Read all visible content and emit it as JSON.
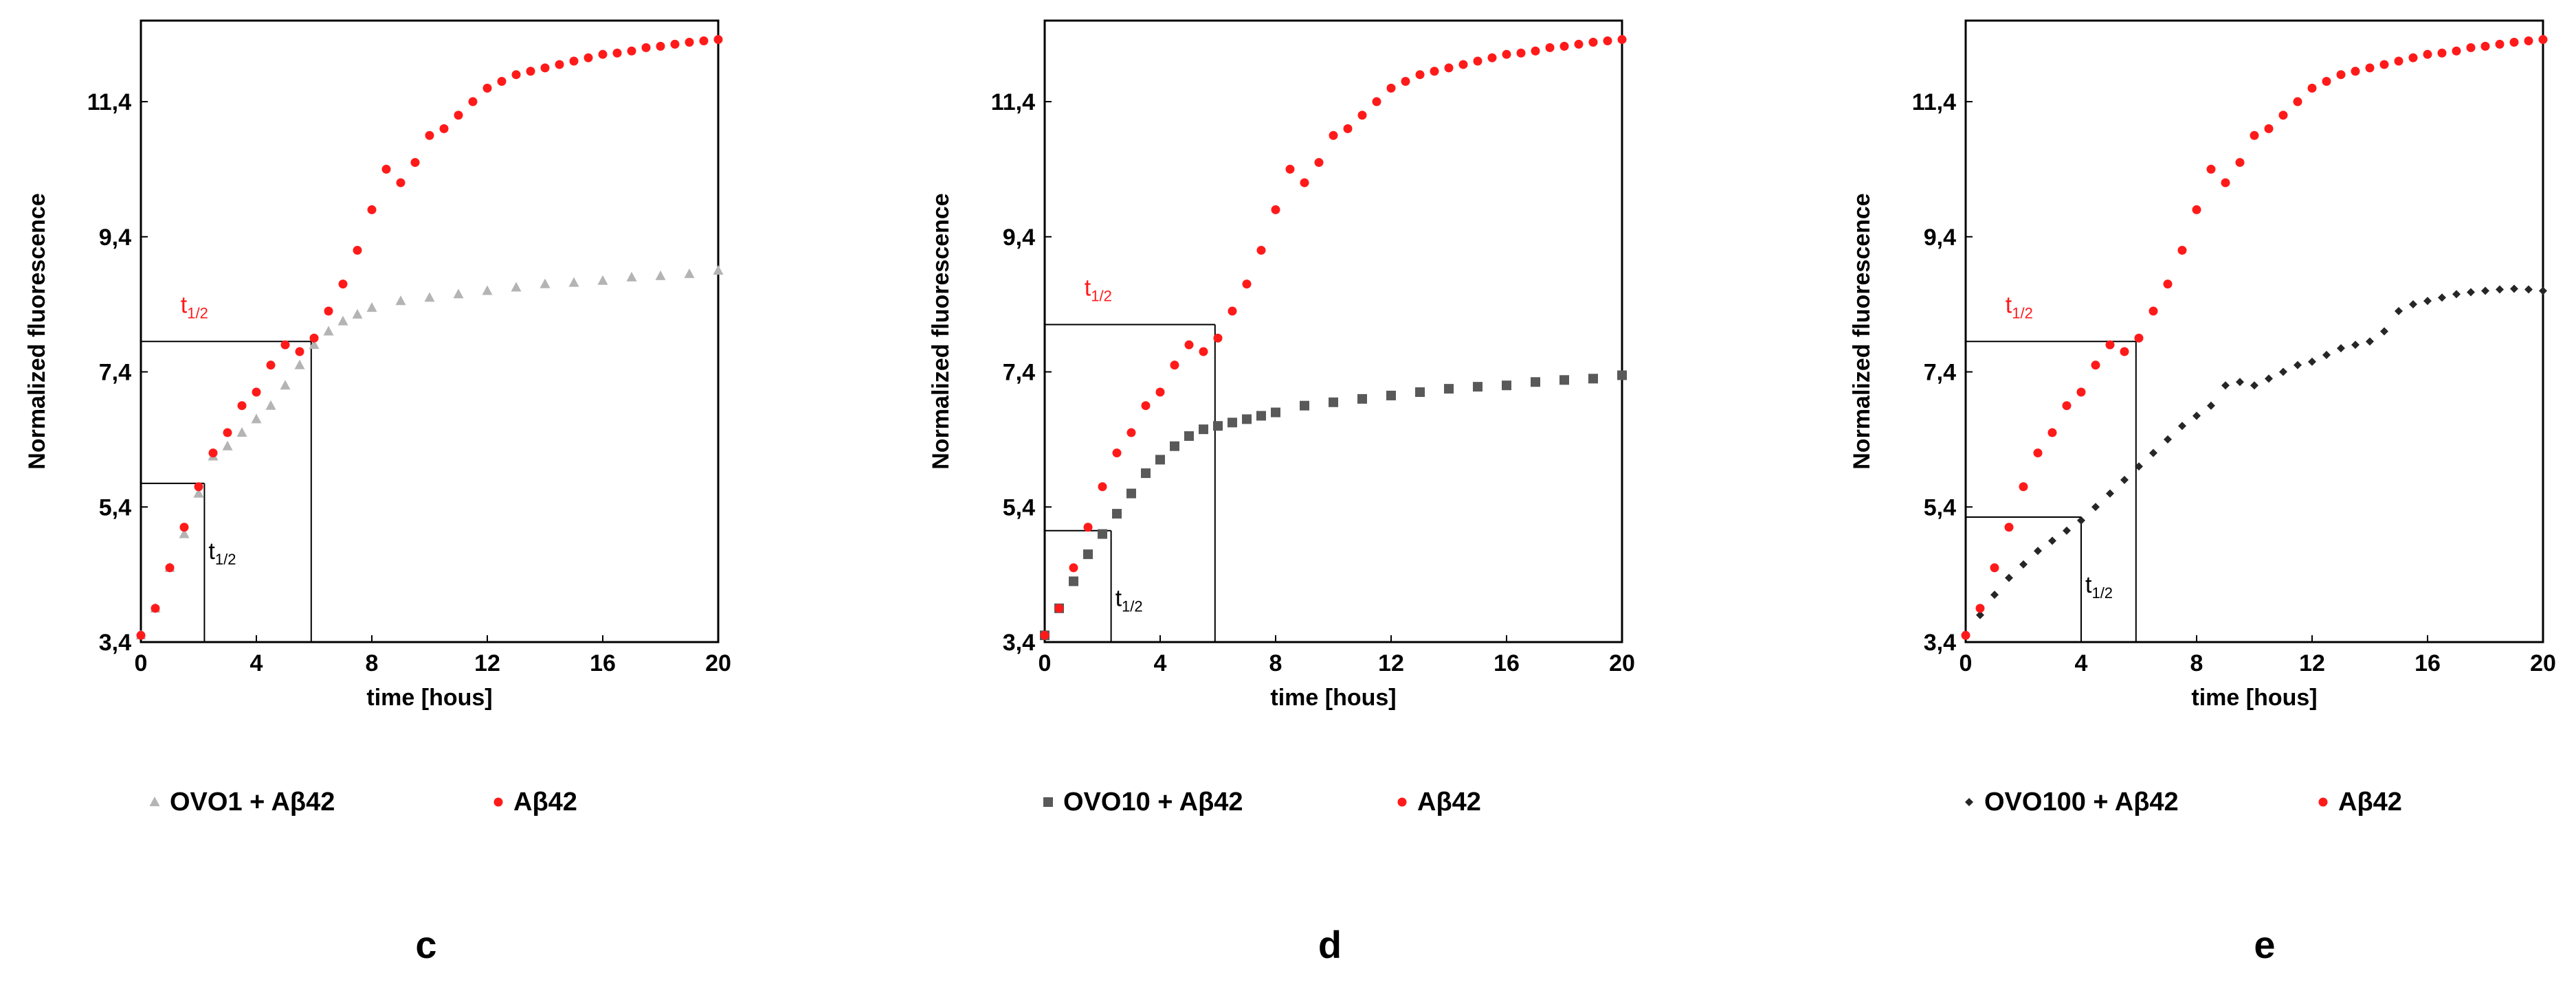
{
  "colors": {
    "abeta": "#ff1a1a",
    "ovo1": "#b4b4b4",
    "ovo10": "#595959",
    "ovo100": "#262626",
    "axis": "#000000"
  },
  "chart_data": [
    {
      "type": "scatter",
      "panel_label": "c",
      "xlabel": "time [hous]",
      "ylabel": "Normalized fluorescence",
      "xlim": [
        0,
        20
      ],
      "ylim": [
        3.4,
        12.6
      ],
      "xticks": [
        0,
        4,
        8,
        12,
        16,
        20
      ],
      "yticks": [
        3.4,
        5.4,
        7.4,
        9.4,
        11.4
      ],
      "ytick_labels": [
        "3,4",
        "5,4",
        "7,4",
        "9,4",
        "11,4"
      ],
      "grid": false,
      "legend_position": "bottom",
      "series": [
        {
          "name": "OVO1 + Aβ42",
          "marker": "triangle",
          "color": "#b4b4b4",
          "x": [
            0,
            0.5,
            1,
            1.5,
            2,
            2.5,
            3,
            3.5,
            4,
            4.5,
            5,
            5.5,
            6,
            6.5,
            7,
            7.5,
            8,
            9,
            10,
            11,
            12,
            13,
            14,
            15,
            16,
            17,
            18,
            19,
            20
          ],
          "y": [
            3.5,
            3.9,
            4.5,
            5.0,
            5.6,
            6.15,
            6.3,
            6.5,
            6.7,
            6.9,
            7.2,
            7.5,
            7.8,
            8.0,
            8.15,
            8.25,
            8.35,
            8.45,
            8.5,
            8.55,
            8.6,
            8.65,
            8.7,
            8.72,
            8.75,
            8.8,
            8.82,
            8.85,
            8.9
          ]
        },
        {
          "name": "Aβ42",
          "marker": "circle",
          "color": "#ff1a1a",
          "x": [
            0,
            0.5,
            1,
            1.5,
            2,
            2.5,
            3,
            3.5,
            4,
            4.5,
            5,
            5.5,
            6,
            6.5,
            7,
            7.5,
            8,
            8.5,
            9,
            9.5,
            10,
            10.5,
            11,
            11.5,
            12,
            12.5,
            13,
            13.5,
            14,
            14.5,
            15,
            15.5,
            16,
            16.5,
            17,
            17.5,
            18,
            18.5,
            19,
            19.5,
            20
          ],
          "y": [
            3.5,
            3.9,
            4.5,
            5.1,
            5.7,
            6.2,
            6.5,
            6.9,
            7.1,
            7.5,
            7.8,
            7.7,
            7.9,
            8.3,
            8.7,
            9.2,
            9.8,
            10.4,
            10.2,
            10.5,
            10.9,
            11.0,
            11.2,
            11.4,
            11.6,
            11.7,
            11.8,
            11.85,
            11.9,
            11.95,
            12.0,
            12.05,
            12.1,
            12.12,
            12.15,
            12.2,
            12.22,
            12.25,
            12.28,
            12.3,
            12.32
          ]
        }
      ],
      "annotations": [
        {
          "series": "Aβ42",
          "x": 5.9,
          "y": 7.85,
          "label": "t",
          "sub": "1/2"
        },
        {
          "series": "OVO1 + Aβ42",
          "x": 2.2,
          "y": 5.75,
          "label": "t",
          "sub": "1/2"
        }
      ]
    },
    {
      "type": "scatter",
      "panel_label": "d",
      "xlabel": "time [hous]",
      "ylabel": "Normalized fluorescence",
      "xlim": [
        0,
        20
      ],
      "ylim": [
        3.4,
        12.6
      ],
      "xticks": [
        0,
        4,
        8,
        12,
        16,
        20
      ],
      "yticks": [
        3.4,
        5.4,
        7.4,
        9.4,
        11.4
      ],
      "ytick_labels": [
        "3,4",
        "5,4",
        "7,4",
        "9,4",
        "11,4"
      ],
      "grid": false,
      "legend_position": "bottom",
      "series": [
        {
          "name": "OVO10 + Aβ42",
          "marker": "square",
          "color": "#595959",
          "x": [
            0,
            0.5,
            1,
            1.5,
            2,
            2.5,
            3,
            3.5,
            4,
            4.5,
            5,
            5.5,
            6,
            6.5,
            7,
            7.5,
            8,
            9,
            10,
            11,
            12,
            13,
            14,
            15,
            16,
            17,
            18,
            19,
            20
          ],
          "y": [
            3.5,
            3.9,
            4.3,
            4.7,
            5.0,
            5.3,
            5.6,
            5.9,
            6.1,
            6.3,
            6.45,
            6.55,
            6.6,
            6.65,
            6.7,
            6.75,
            6.8,
            6.9,
            6.95,
            7.0,
            7.05,
            7.1,
            7.15,
            7.18,
            7.2,
            7.25,
            7.28,
            7.3,
            7.35
          ]
        },
        {
          "name": "Aβ42",
          "marker": "circle",
          "color": "#ff1a1a",
          "x": [
            0,
            0.5,
            1,
            1.5,
            2,
            2.5,
            3,
            3.5,
            4,
            4.5,
            5,
            5.5,
            6,
            6.5,
            7,
            7.5,
            8,
            8.5,
            9,
            9.5,
            10,
            10.5,
            11,
            11.5,
            12,
            12.5,
            13,
            13.5,
            14,
            14.5,
            15,
            15.5,
            16,
            16.5,
            17,
            17.5,
            18,
            18.5,
            19,
            19.5,
            20
          ],
          "y": [
            3.5,
            3.9,
            4.5,
            5.1,
            5.7,
            6.2,
            6.5,
            6.9,
            7.1,
            7.5,
            7.8,
            7.7,
            7.9,
            8.3,
            8.7,
            9.2,
            9.8,
            10.4,
            10.2,
            10.5,
            10.9,
            11.0,
            11.2,
            11.4,
            11.6,
            11.7,
            11.8,
            11.85,
            11.9,
            11.95,
            12.0,
            12.05,
            12.1,
            12.12,
            12.15,
            12.2,
            12.22,
            12.25,
            12.28,
            12.3,
            12.32
          ]
        }
      ],
      "annotations": [
        {
          "series": "Aβ42",
          "x": 5.9,
          "y": 8.1,
          "label": "t",
          "sub": "1/2"
        },
        {
          "series": "OVO10 + Aβ42",
          "x": 2.3,
          "y": 5.05,
          "label": "t",
          "sub": "1/2"
        }
      ]
    },
    {
      "type": "scatter",
      "panel_label": "e",
      "xlabel": "time [hous]",
      "ylabel": "Normalized fluorescence",
      "xlim": [
        0,
        20
      ],
      "ylim": [
        3.4,
        12.6
      ],
      "xticks": [
        0,
        4,
        8,
        12,
        16,
        20
      ],
      "yticks": [
        3.4,
        5.4,
        7.4,
        9.4,
        11.4
      ],
      "ytick_labels": [
        "3,4",
        "5,4",
        "7,4",
        "9,4",
        "11,4"
      ],
      "grid": false,
      "legend_position": "bottom",
      "series": [
        {
          "name": "OVO100 + Aβ42",
          "marker": "diamond",
          "color": "#262626",
          "x": [
            0,
            0.5,
            1,
            1.5,
            2,
            2.5,
            3,
            3.5,
            4,
            4.5,
            5,
            5.5,
            6,
            6.5,
            7,
            7.5,
            8,
            8.5,
            9,
            9.5,
            10,
            10.5,
            11,
            11.5,
            12,
            12.5,
            13,
            13.5,
            14,
            14.5,
            15,
            15.5,
            16,
            16.5,
            17,
            17.5,
            18,
            18.5,
            19,
            19.5,
            20
          ],
          "y": [
            3.5,
            3.8,
            4.1,
            4.35,
            4.55,
            4.75,
            4.9,
            5.05,
            5.2,
            5.4,
            5.6,
            5.8,
            6.0,
            6.2,
            6.4,
            6.6,
            6.75,
            6.9,
            7.2,
            7.25,
            7.2,
            7.3,
            7.4,
            7.5,
            7.55,
            7.65,
            7.75,
            7.8,
            7.85,
            8.0,
            8.3,
            8.4,
            8.45,
            8.5,
            8.55,
            8.58,
            8.6,
            8.62,
            8.63,
            8.62,
            8.6
          ]
        },
        {
          "name": "Aβ42",
          "marker": "circle",
          "color": "#ff1a1a",
          "x": [
            0,
            0.5,
            1,
            1.5,
            2,
            2.5,
            3,
            3.5,
            4,
            4.5,
            5,
            5.5,
            6,
            6.5,
            7,
            7.5,
            8,
            8.5,
            9,
            9.5,
            10,
            10.5,
            11,
            11.5,
            12,
            12.5,
            13,
            13.5,
            14,
            14.5,
            15,
            15.5,
            16,
            16.5,
            17,
            17.5,
            18,
            18.5,
            19,
            19.5,
            20
          ],
          "y": [
            3.5,
            3.9,
            4.5,
            5.1,
            5.7,
            6.2,
            6.5,
            6.9,
            7.1,
            7.5,
            7.8,
            7.7,
            7.9,
            8.3,
            8.7,
            9.2,
            9.8,
            10.4,
            10.2,
            10.5,
            10.9,
            11.0,
            11.2,
            11.4,
            11.6,
            11.7,
            11.8,
            11.85,
            11.9,
            11.95,
            12.0,
            12.05,
            12.1,
            12.12,
            12.15,
            12.2,
            12.22,
            12.25,
            12.28,
            12.3,
            12.32
          ]
        }
      ],
      "annotations": [
        {
          "series": "Aβ42",
          "x": 5.9,
          "y": 7.85,
          "label": "t",
          "sub": "1/2"
        },
        {
          "series": "OVO100 + Aβ42",
          "x": 4.0,
          "y": 5.25,
          "label": "t",
          "sub": "1/2"
        }
      ]
    }
  ]
}
